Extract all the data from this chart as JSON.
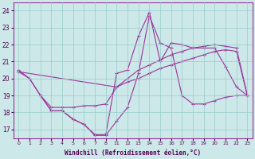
{
  "xlabel": "Windchill (Refroidissement éolien,°C)",
  "bg_color": "#cce8e8",
  "line_color": "#993399",
  "grid_color": "#99cccc",
  "ylim": [
    16.5,
    24.5
  ],
  "yticks": [
    17,
    18,
    19,
    20,
    21,
    22,
    23,
    24
  ],
  "hour_labels": [
    "0",
    "1",
    "2",
    "3",
    "4",
    "5",
    "6",
    "7",
    "8",
    "11",
    "12",
    "13",
    "14",
    "15",
    "16",
    "17",
    "18",
    "19",
    "20",
    "21",
    "22",
    "23"
  ],
  "series": {
    "line1_x": [
      0,
      1,
      2,
      3,
      4,
      5,
      6,
      7,
      8,
      9,
      10,
      11,
      12,
      13,
      14,
      15,
      16,
      17,
      18,
      19,
      20,
      21
    ],
    "line1_y": [
      20.5,
      20.0,
      19.0,
      18.1,
      18.1,
      17.6,
      17.3,
      16.65,
      16.65,
      17.5,
      18.3,
      20.3,
      23.7,
      22.1,
      21.8,
      19.0,
      18.5,
      18.5,
      18.7,
      18.9,
      19.0,
      19.0
    ],
    "line2_x": [
      0,
      1,
      2,
      3,
      4,
      5,
      6,
      7,
      8,
      9,
      10,
      11,
      12,
      13,
      14,
      15,
      16,
      17,
      18,
      19,
      20,
      21
    ],
    "line2_y": [
      20.4,
      20.0,
      19.0,
      18.1,
      18.1,
      17.6,
      17.3,
      16.7,
      16.7,
      20.3,
      20.5,
      22.5,
      23.9,
      21.0,
      22.1,
      22.0,
      21.8,
      21.8,
      21.8,
      20.7,
      19.5,
      19.0
    ],
    "line3_x": [
      0,
      9,
      10,
      11,
      12,
      13,
      14,
      15,
      16,
      17,
      18,
      19,
      20,
      21
    ],
    "line3_y": [
      20.4,
      19.5,
      20.0,
      20.5,
      20.8,
      21.1,
      21.4,
      21.6,
      21.8,
      21.9,
      22.0,
      21.9,
      21.8,
      19.0
    ],
    "line4_x": [
      2,
      3,
      4,
      5,
      6,
      7,
      8,
      9,
      10,
      11,
      12,
      13,
      14,
      15,
      16,
      17,
      18,
      19,
      20,
      21
    ],
    "line4_y": [
      19.0,
      18.3,
      18.3,
      18.3,
      18.4,
      18.4,
      18.5,
      19.5,
      19.8,
      20.0,
      20.3,
      20.6,
      20.8,
      21.0,
      21.2,
      21.4,
      21.6,
      21.7,
      21.6,
      19.0
    ]
  }
}
